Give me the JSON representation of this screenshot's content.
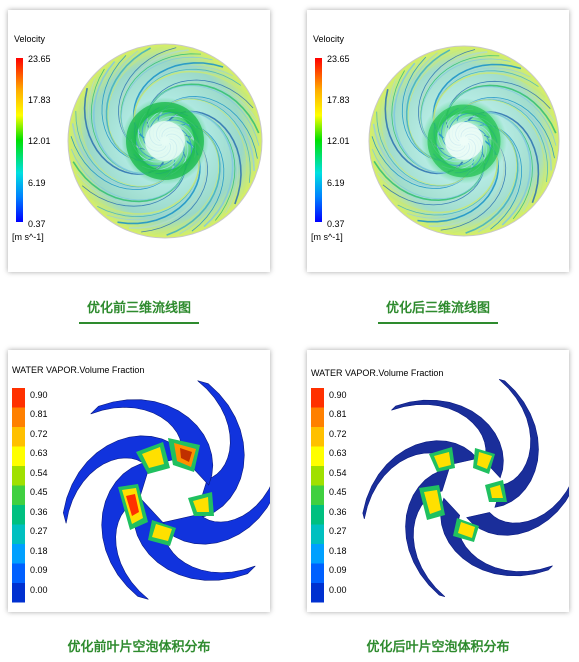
{
  "panels": [
    {
      "id": "before_streamline",
      "legend_title": "Velocity",
      "ticks": [
        "23.65",
        "17.83",
        "12.01",
        "6.19",
        "0.37"
      ],
      "unit": "[m s^-1]",
      "caption": "优化前三维流线图"
    },
    {
      "id": "after_streamline",
      "legend_title": "Velocity",
      "ticks": [
        "23.65",
        "17.83",
        "12.01",
        "6.19",
        "0.37"
      ],
      "unit": "[m s^-1]",
      "caption": "优化后三维流线图"
    },
    {
      "id": "before_vapor",
      "legend_title": "WATER VAPOR.Volume Fraction",
      "ticks": [
        "0.90",
        "0.81",
        "0.72",
        "0.63",
        "0.54",
        "0.45",
        "0.36",
        "0.27",
        "0.18",
        "0.09",
        "0.00"
      ],
      "caption": "优化前叶片空泡体积分布"
    },
    {
      "id": "after_vapor",
      "legend_title": "WATER VAPOR.Volume Fraction",
      "ticks": [
        "0.90",
        "0.81",
        "0.72",
        "0.63",
        "0.54",
        "0.45",
        "0.36",
        "0.27",
        "0.18",
        "0.09",
        "0.00"
      ],
      "caption": "优化后叶片空泡体积分布"
    }
  ],
  "colors": {
    "caption": "#2e8b2e",
    "velocity_scale": [
      "#ff0000",
      "#ffb000",
      "#ffff00",
      "#00e000",
      "#00e0e0",
      "#0080ff",
      "#0000ff"
    ],
    "vapor_bands": [
      "#ff3000",
      "#ff8000",
      "#ffc000",
      "#ffff00",
      "#a0e000",
      "#40d040",
      "#00c080",
      "#00c0c0",
      "#00a0ff",
      "#0060ff",
      "#0030d0"
    ]
  }
}
